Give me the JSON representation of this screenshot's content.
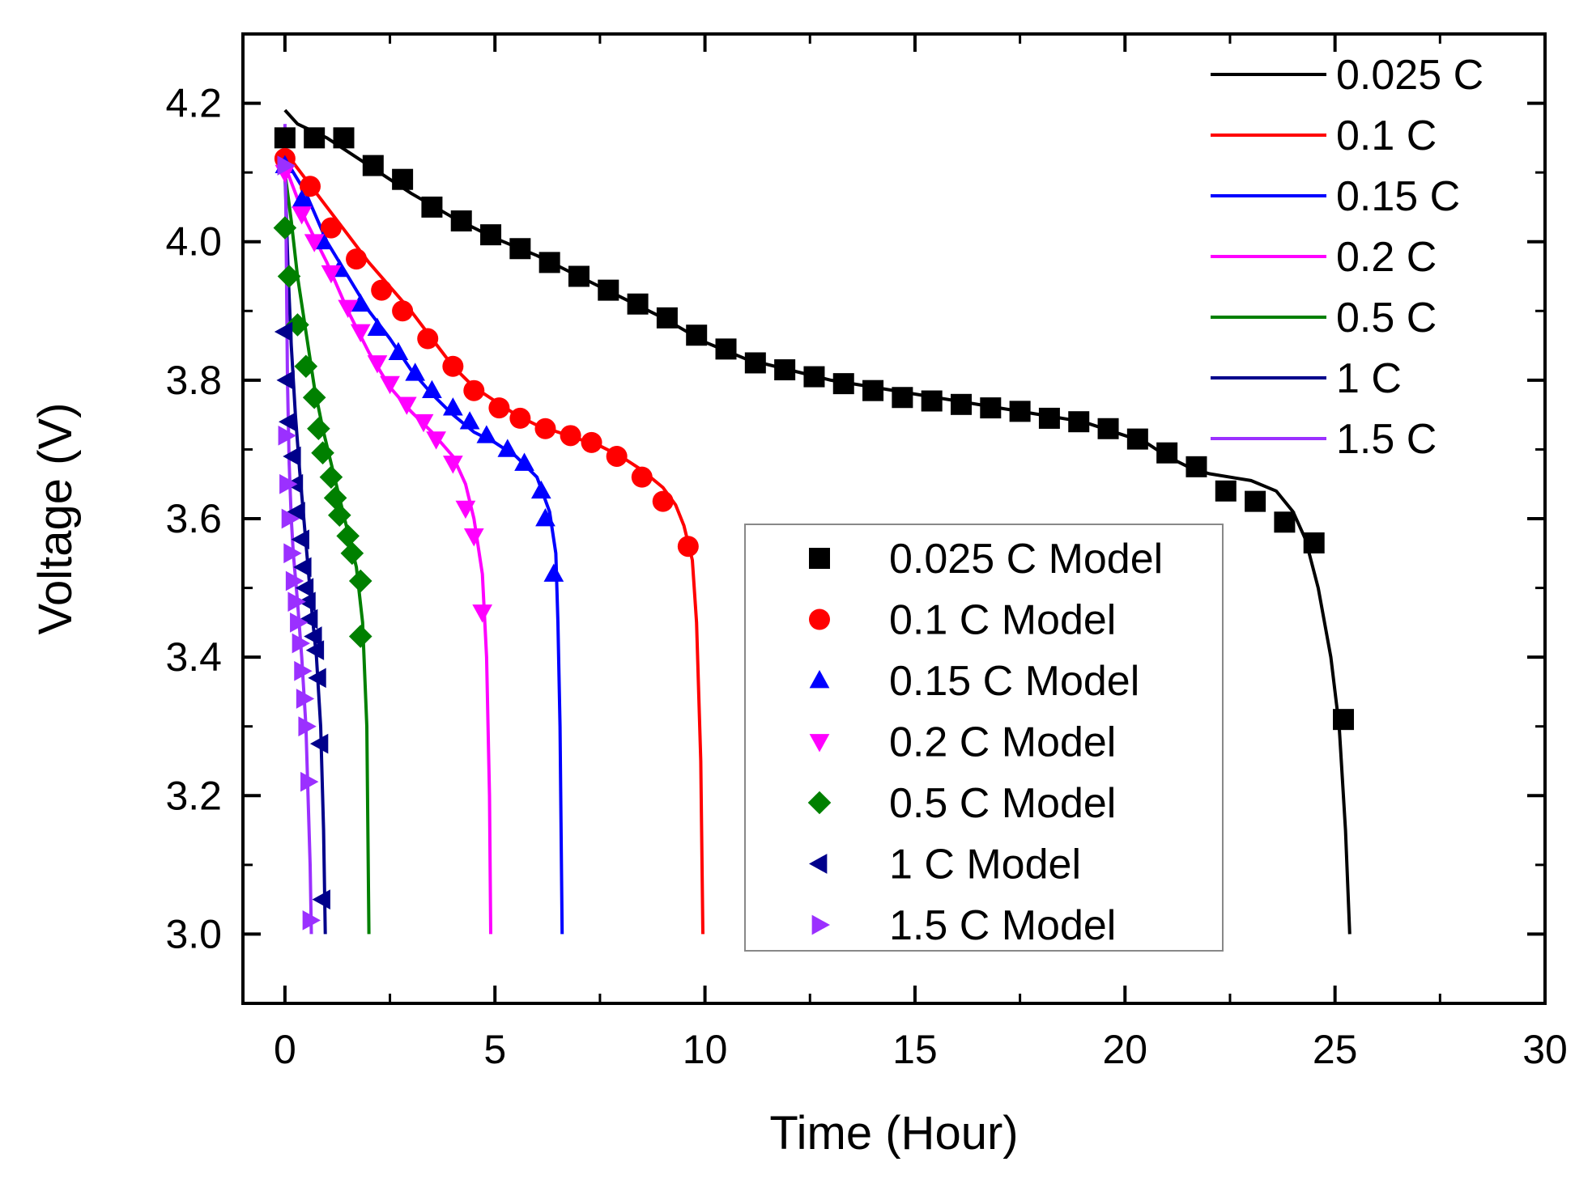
{
  "chart_data": {
    "type": "line",
    "title": "",
    "xlabel": "Time (Hour)",
    "ylabel": "Voltage (V)",
    "xlim": [
      -1,
      30
    ],
    "ylim": [
      2.9,
      4.3
    ],
    "xticks": [
      0,
      5,
      10,
      15,
      20,
      25,
      30
    ],
    "xtick_labels": [
      "0",
      "5",
      "10",
      "15",
      "20",
      "25",
      "30"
    ],
    "yticks": [
      3.0,
      3.2,
      3.4,
      3.6,
      3.8,
      4.0,
      4.2
    ],
    "ytick_labels": [
      "3.0",
      "3.2",
      "3.4",
      "3.6",
      "3.8",
      "4.0",
      "4.2"
    ],
    "grid": false,
    "line_legend_position": "top-right",
    "model_legend_position": "lower-center",
    "series": [
      {
        "name": "0.025 C",
        "model_name": "0.025 C Model",
        "color": "#000000",
        "marker": "square",
        "line": [
          [
            0,
            4.19
          ],
          [
            0.3,
            4.17
          ],
          [
            1,
            4.15
          ],
          [
            2,
            4.11
          ],
          [
            3,
            4.07
          ],
          [
            4,
            4.035
          ],
          [
            5,
            4.005
          ],
          [
            6,
            3.98
          ],
          [
            7,
            3.95
          ],
          [
            8,
            3.92
          ],
          [
            9,
            3.89
          ],
          [
            10,
            3.855
          ],
          [
            11,
            3.83
          ],
          [
            12,
            3.815
          ],
          [
            13,
            3.8
          ],
          [
            14,
            3.79
          ],
          [
            15,
            3.78
          ],
          [
            16,
            3.77
          ],
          [
            17,
            3.76
          ],
          [
            18,
            3.75
          ],
          [
            19,
            3.74
          ],
          [
            20,
            3.72
          ],
          [
            20.5,
            3.71
          ],
          [
            21,
            3.69
          ],
          [
            21.5,
            3.675
          ],
          [
            22,
            3.665
          ],
          [
            23,
            3.655
          ],
          [
            23.6,
            3.64
          ],
          [
            24,
            3.61
          ],
          [
            24.3,
            3.57
          ],
          [
            24.6,
            3.5
          ],
          [
            24.9,
            3.4
          ],
          [
            25.1,
            3.3
          ],
          [
            25.25,
            3.15
          ],
          [
            25.35,
            3.0
          ]
        ],
        "model": [
          [
            0,
            4.15
          ],
          [
            0.7,
            4.15
          ],
          [
            1.4,
            4.15
          ],
          [
            2.1,
            4.11
          ],
          [
            2.8,
            4.09
          ],
          [
            3.5,
            4.05
          ],
          [
            4.2,
            4.03
          ],
          [
            4.9,
            4.01
          ],
          [
            5.6,
            3.99
          ],
          [
            6.3,
            3.97
          ],
          [
            7,
            3.95
          ],
          [
            7.7,
            3.93
          ],
          [
            8.4,
            3.91
          ],
          [
            9.1,
            3.89
          ],
          [
            9.8,
            3.865
          ],
          [
            10.5,
            3.845
          ],
          [
            11.2,
            3.825
          ],
          [
            11.9,
            3.815
          ],
          [
            12.6,
            3.805
          ],
          [
            13.3,
            3.795
          ],
          [
            14,
            3.785
          ],
          [
            14.7,
            3.775
          ],
          [
            15.4,
            3.77
          ],
          [
            16.1,
            3.765
          ],
          [
            16.8,
            3.76
          ],
          [
            17.5,
            3.755
          ],
          [
            18.2,
            3.745
          ],
          [
            18.9,
            3.74
          ],
          [
            19.6,
            3.73
          ],
          [
            20.3,
            3.715
          ],
          [
            21,
            3.695
          ],
          [
            21.7,
            3.675
          ],
          [
            22.4,
            3.64
          ],
          [
            23.1,
            3.625
          ],
          [
            23.8,
            3.595
          ],
          [
            24.5,
            3.565
          ],
          [
            25.2,
            3.31
          ]
        ]
      },
      {
        "name": "0.1 C",
        "model_name": "0.1 C Model",
        "color": "#ff0000",
        "marker": "circle",
        "line": [
          [
            0,
            4.13
          ],
          [
            0.5,
            4.09
          ],
          [
            1,
            4.05
          ],
          [
            1.5,
            4.01
          ],
          [
            2,
            3.97
          ],
          [
            2.5,
            3.935
          ],
          [
            3,
            3.9
          ],
          [
            3.5,
            3.86
          ],
          [
            4,
            3.82
          ],
          [
            4.5,
            3.79
          ],
          [
            5,
            3.77
          ],
          [
            5.5,
            3.75
          ],
          [
            6,
            3.735
          ],
          [
            6.5,
            3.725
          ],
          [
            7,
            3.715
          ],
          [
            7.5,
            3.705
          ],
          [
            8,
            3.69
          ],
          [
            8.5,
            3.67
          ],
          [
            9,
            3.645
          ],
          [
            9.3,
            3.62
          ],
          [
            9.5,
            3.59
          ],
          [
            9.7,
            3.54
          ],
          [
            9.8,
            3.45
          ],
          [
            9.9,
            3.25
          ],
          [
            9.95,
            3.0
          ]
        ],
        "model": [
          [
            0,
            4.12
          ],
          [
            0.6,
            4.08
          ],
          [
            1.1,
            4.02
          ],
          [
            1.7,
            3.975
          ],
          [
            2.3,
            3.93
          ],
          [
            2.8,
            3.9
          ],
          [
            3.4,
            3.86
          ],
          [
            4,
            3.82
          ],
          [
            4.5,
            3.785
          ],
          [
            5.1,
            3.76
          ],
          [
            5.6,
            3.745
          ],
          [
            6.2,
            3.73
          ],
          [
            6.8,
            3.72
          ],
          [
            7.3,
            3.71
          ],
          [
            7.9,
            3.69
          ],
          [
            8.5,
            3.66
          ],
          [
            9,
            3.625
          ],
          [
            9.6,
            3.56
          ]
        ]
      },
      {
        "name": "0.15 C",
        "model_name": "0.15 C Model",
        "color": "#0000ff",
        "marker": "triangle-up",
        "line": [
          [
            0,
            4.12
          ],
          [
            0.5,
            4.07
          ],
          [
            1,
            4.0
          ],
          [
            1.5,
            3.95
          ],
          [
            2,
            3.9
          ],
          [
            2.5,
            3.86
          ],
          [
            3,
            3.815
          ],
          [
            3.5,
            3.78
          ],
          [
            4,
            3.75
          ],
          [
            4.5,
            3.725
          ],
          [
            5,
            3.71
          ],
          [
            5.5,
            3.69
          ],
          [
            6,
            3.66
          ],
          [
            6.3,
            3.61
          ],
          [
            6.45,
            3.55
          ],
          [
            6.5,
            3.45
          ],
          [
            6.55,
            3.3
          ],
          [
            6.6,
            3.0
          ]
        ],
        "model": [
          [
            0,
            4.11
          ],
          [
            0.4,
            4.06
          ],
          [
            0.9,
            4.0
          ],
          [
            1.3,
            3.96
          ],
          [
            1.8,
            3.91
          ],
          [
            2.2,
            3.875
          ],
          [
            2.7,
            3.84
          ],
          [
            3.1,
            3.81
          ],
          [
            3.5,
            3.785
          ],
          [
            4,
            3.76
          ],
          [
            4.4,
            3.74
          ],
          [
            4.8,
            3.72
          ],
          [
            5.3,
            3.7
          ],
          [
            5.7,
            3.68
          ],
          [
            6.1,
            3.64
          ],
          [
            6.2,
            3.6
          ],
          [
            6.4,
            3.52
          ]
        ]
      },
      {
        "name": "0.2 C",
        "model_name": "0.2 C Model",
        "color": "#ff00ff",
        "marker": "triangle-down",
        "line": [
          [
            0,
            4.11
          ],
          [
            0.5,
            4.03
          ],
          [
            1,
            3.97
          ],
          [
            1.5,
            3.9
          ],
          [
            2,
            3.84
          ],
          [
            2.5,
            3.79
          ],
          [
            3,
            3.755
          ],
          [
            3.5,
            3.725
          ],
          [
            4,
            3.69
          ],
          [
            4.3,
            3.65
          ],
          [
            4.5,
            3.6
          ],
          [
            4.7,
            3.52
          ],
          [
            4.8,
            3.4
          ],
          [
            4.87,
            3.2
          ],
          [
            4.9,
            3.0
          ]
        ],
        "model": [
          [
            0,
            4.1
          ],
          [
            0.4,
            4.04
          ],
          [
            0.7,
            4.0
          ],
          [
            1.1,
            3.955
          ],
          [
            1.5,
            3.905
          ],
          [
            1.8,
            3.87
          ],
          [
            2.2,
            3.825
          ],
          [
            2.5,
            3.795
          ],
          [
            2.9,
            3.765
          ],
          [
            3.3,
            3.74
          ],
          [
            3.6,
            3.715
          ],
          [
            4,
            3.68
          ],
          [
            4.3,
            3.615
          ],
          [
            4.5,
            3.575
          ],
          [
            4.7,
            3.465
          ]
        ]
      },
      {
        "name": "0.5 C",
        "model_name": "0.5 C Model",
        "color": "#008000",
        "marker": "diamond",
        "line": [
          [
            0,
            4.1
          ],
          [
            0.15,
            4.03
          ],
          [
            0.3,
            3.95
          ],
          [
            0.5,
            3.87
          ],
          [
            0.7,
            3.79
          ],
          [
            0.9,
            3.73
          ],
          [
            1.1,
            3.68
          ],
          [
            1.3,
            3.63
          ],
          [
            1.5,
            3.58
          ],
          [
            1.7,
            3.53
          ],
          [
            1.85,
            3.45
          ],
          [
            1.95,
            3.3
          ],
          [
            2.0,
            3.0
          ]
        ],
        "model": [
          [
            0,
            4.02
          ],
          [
            0.1,
            3.95
          ],
          [
            0.3,
            3.88
          ],
          [
            0.5,
            3.82
          ],
          [
            0.7,
            3.775
          ],
          [
            0.8,
            3.73
          ],
          [
            0.9,
            3.695
          ],
          [
            1.1,
            3.66
          ],
          [
            1.2,
            3.63
          ],
          [
            1.3,
            3.605
          ],
          [
            1.5,
            3.575
          ],
          [
            1.6,
            3.55
          ],
          [
            1.8,
            3.51
          ],
          [
            1.8,
            3.43
          ]
        ]
      },
      {
        "name": "1 C",
        "model_name": "1 C Model",
        "color": "#00008b",
        "marker": "triangle-left",
        "line": [
          [
            0,
            4.1
          ],
          [
            0.08,
            3.95
          ],
          [
            0.15,
            3.85
          ],
          [
            0.25,
            3.75
          ],
          [
            0.35,
            3.67
          ],
          [
            0.45,
            3.6
          ],
          [
            0.55,
            3.53
          ],
          [
            0.65,
            3.46
          ],
          [
            0.75,
            3.4
          ],
          [
            0.85,
            3.3
          ],
          [
            0.92,
            3.15
          ],
          [
            0.96,
            3.0
          ]
        ],
        "model": [
          [
            0,
            3.87
          ],
          [
            0.05,
            3.8
          ],
          [
            0.1,
            3.74
          ],
          [
            0.2,
            3.69
          ],
          [
            0.25,
            3.65
          ],
          [
            0.3,
            3.61
          ],
          [
            0.4,
            3.57
          ],
          [
            0.45,
            3.53
          ],
          [
            0.5,
            3.5
          ],
          [
            0.55,
            3.48
          ],
          [
            0.6,
            3.455
          ],
          [
            0.7,
            3.43
          ],
          [
            0.75,
            3.41
          ],
          [
            0.8,
            3.37
          ],
          [
            0.85,
            3.275
          ],
          [
            0.9,
            3.05
          ]
        ]
      },
      {
        "name": "1.5 C",
        "model_name": "1.5 C Model",
        "color": "#9b30ff",
        "marker": "triangle-right",
        "line": [
          [
            0,
            4.17
          ],
          [
            0.03,
            4.0
          ],
          [
            0.06,
            3.8
          ],
          [
            0.1,
            3.68
          ],
          [
            0.15,
            3.6
          ],
          [
            0.2,
            3.55
          ],
          [
            0.3,
            3.48
          ],
          [
            0.4,
            3.4
          ],
          [
            0.5,
            3.3
          ],
          [
            0.55,
            3.2
          ],
          [
            0.6,
            3.1
          ],
          [
            0.63,
            3.0
          ]
        ],
        "model": [
          [
            0,
            4.11
          ],
          [
            0.02,
            3.72
          ],
          [
            0.05,
            3.65
          ],
          [
            0.1,
            3.6
          ],
          [
            0.15,
            3.55
          ],
          [
            0.2,
            3.51
          ],
          [
            0.25,
            3.48
          ],
          [
            0.3,
            3.45
          ],
          [
            0.35,
            3.42
          ],
          [
            0.4,
            3.38
          ],
          [
            0.45,
            3.34
          ],
          [
            0.5,
            3.3
          ],
          [
            0.55,
            3.22
          ],
          [
            0.6,
            3.02
          ]
        ]
      }
    ]
  }
}
